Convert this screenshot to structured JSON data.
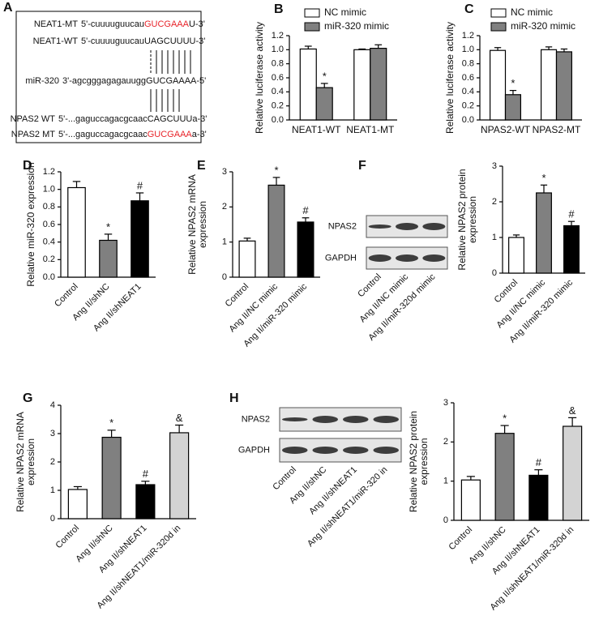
{
  "sequence_panel": {
    "panel": "A",
    "rows": [
      {
        "name": "NEAT1-MT",
        "parts": [
          {
            "text": "5'-cuuuuguucau"
          },
          {
            "text": "GUCGAAA",
            "color": "#e8242a"
          },
          {
            "text": "U-3'"
          }
        ]
      },
      {
        "name": "NEAT1-WT",
        "parts": [
          {
            "text": "5'-cuuuuguucauUAGCUUUU-3'"
          }
        ]
      },
      {
        "name": "miR-320",
        "parts": [
          {
            "text": "3'-agcgggagagauuggGUCGAAAA-5'"
          }
        ]
      },
      {
        "name": "NPAS2 WT",
        "parts": [
          {
            "text": "5'-...gaguccagacgcaacCAGCUUUa-3'"
          }
        ]
      },
      {
        "name": "NPAS2 MT",
        "parts": [
          {
            "text": "5'-...gaguccagacgcaac"
          },
          {
            "text": "GUCGAAA",
            "color": "#e8242a"
          },
          {
            "text": "a-3'"
          }
        ]
      }
    ]
  },
  "blots": [
    {
      "rows": [
        "NPAS2",
        "GAPDH"
      ],
      "lanes": [
        "Control",
        "Ang II/NC mimic",
        "Ang II/miR-320d mimic"
      ]
    },
    {
      "rows": [
        "NPAS2",
        "GAPDH"
      ],
      "lanes": [
        "Control",
        "Ang II/shNC",
        "Ang II/shNEAT1",
        "Ang II/shNEAT1/miR-320 in"
      ]
    }
  ],
  "chart_data": [
    {
      "type": "bar",
      "panel": "B",
      "ylabel": [
        "Relative luciferase activity"
      ],
      "categories": [
        "NEAT1-WT",
        "NEAT1-MT"
      ],
      "series": [
        {
          "name": "NC mimic",
          "color": "#ffffff",
          "values": [
            1.01,
            1.0
          ],
          "errors": [
            0.04,
            0.01
          ],
          "annotations": [
            null,
            null
          ]
        },
        {
          "name": "miR-320 mimic",
          "color": "#808080",
          "values": [
            0.46,
            1.02
          ],
          "errors": [
            0.06,
            0.05
          ],
          "annotations": [
            "*",
            null
          ]
        }
      ],
      "ylim": [
        0,
        1.2
      ],
      "yticks": [
        {
          "value": 0,
          "label": "0.0"
        },
        0.2,
        0.4,
        0.6,
        0.8,
        {
          "value": 1,
          "label": "1.0"
        },
        1.2
      ]
    },
    {
      "type": "bar",
      "panel": "C",
      "ylabel": [
        "Relative luciferase activity"
      ],
      "categories": [
        "NPAS2-WT",
        "NPAS2-MT"
      ],
      "series": [
        {
          "name": "NC mimic",
          "color": "#ffffff",
          "values": [
            0.99,
            1.0
          ],
          "errors": [
            0.04,
            0.04
          ],
          "annotations": [
            null,
            null
          ]
        },
        {
          "name": "miR-320 mimic",
          "color": "#808080",
          "values": [
            0.36,
            0.97
          ],
          "errors": [
            0.06,
            0.04
          ],
          "annotations": [
            "*",
            null
          ]
        }
      ],
      "ylim": [
        0,
        1.2
      ],
      "yticks": [
        {
          "value": 0,
          "label": "0.0"
        },
        0.2,
        0.4,
        0.6,
        0.8,
        {
          "value": 1,
          "label": "1.0"
        },
        1.2
      ]
    },
    {
      "type": "bar",
      "panel": "D",
      "ylabel": [
        "Relative miR-320 expression"
      ],
      "categories": [
        "Control",
        "Ang II/shNC",
        "Ang II/shNEAT1"
      ],
      "series": [
        {
          "colors": [
            "#ffffff",
            "#808080",
            "#000000"
          ],
          "values": [
            1.02,
            0.42,
            0.87
          ],
          "errors": [
            0.07,
            0.07,
            0.09
          ],
          "annotations": [
            null,
            "*",
            "#"
          ]
        }
      ],
      "ylim": [
        0,
        1.2
      ],
      "yticks": [
        {
          "value": 0,
          "label": "0.0"
        },
        0.2,
        0.4,
        0.6,
        0.8,
        {
          "value": 1,
          "label": "1.0"
        },
        1.2
      ]
    },
    {
      "type": "bar",
      "panel": "E",
      "ylabel": [
        "Relative NPAS2 mRNA",
        "expression"
      ],
      "categories": [
        "Control",
        "Ang II/NC mimic",
        "Ang II/miR-320 mimic"
      ],
      "series": [
        {
          "colors": [
            "#ffffff",
            "#808080",
            "#000000"
          ],
          "values": [
            1.03,
            2.62,
            1.57
          ],
          "errors": [
            0.08,
            0.22,
            0.12
          ],
          "annotations": [
            null,
            "*",
            "#"
          ]
        }
      ],
      "ylim": [
        0,
        3
      ],
      "yticks": [
        0,
        1,
        2,
        3
      ]
    },
    {
      "type": "bar",
      "panel": "F",
      "ylabel": [
        "Relative NPAS2 protein",
        "expression"
      ],
      "categories": [
        "Control",
        "Ang II/NC mimic",
        "Ang II/miR-320 mimic"
      ],
      "series": [
        {
          "colors": [
            "#ffffff",
            "#808080",
            "#000000"
          ],
          "values": [
            1.0,
            2.25,
            1.33
          ],
          "errors": [
            0.07,
            0.22,
            0.12
          ],
          "annotations": [
            null,
            "*",
            "#"
          ]
        }
      ],
      "ylim": [
        0,
        3
      ],
      "yticks": [
        0,
        1,
        2,
        3
      ]
    },
    {
      "type": "bar",
      "panel": "G",
      "ylabel": [
        "Relative NPAS2 mRNA",
        "expression"
      ],
      "categories": [
        "Control",
        "Ang II/shNC",
        "Ang II/shNEAT1",
        "Ang II/shNEAT1/miR-320d in"
      ],
      "series": [
        {
          "colors": [
            "#ffffff",
            "#808080",
            "#000000",
            "#d3d3d3"
          ],
          "values": [
            1.03,
            2.87,
            1.2,
            3.03
          ],
          "errors": [
            0.1,
            0.25,
            0.12,
            0.27
          ],
          "annotations": [
            null,
            "*",
            "#",
            "&"
          ]
        }
      ],
      "ylim": [
        0,
        4
      ],
      "yticks": [
        0,
        1,
        2,
        3,
        4
      ]
    },
    {
      "type": "bar",
      "panel": "H",
      "ylabel": [
        "Relative NPAS2 protein",
        "expression"
      ],
      "categories": [
        "Control",
        "Ang II/shNC",
        "Ang II/shNEAT1",
        "Ang II/shNEAT1/miR-320d in"
      ],
      "series": [
        {
          "colors": [
            "#ffffff",
            "#808080",
            "#000000",
            "#d3d3d3"
          ],
          "values": [
            1.03,
            2.22,
            1.15,
            2.4
          ],
          "errors": [
            0.09,
            0.2,
            0.14,
            0.22
          ],
          "annotations": [
            null,
            "*",
            "#",
            "&"
          ]
        }
      ],
      "ylim": [
        0,
        3
      ],
      "yticks": [
        0,
        1,
        2,
        3
      ]
    }
  ]
}
